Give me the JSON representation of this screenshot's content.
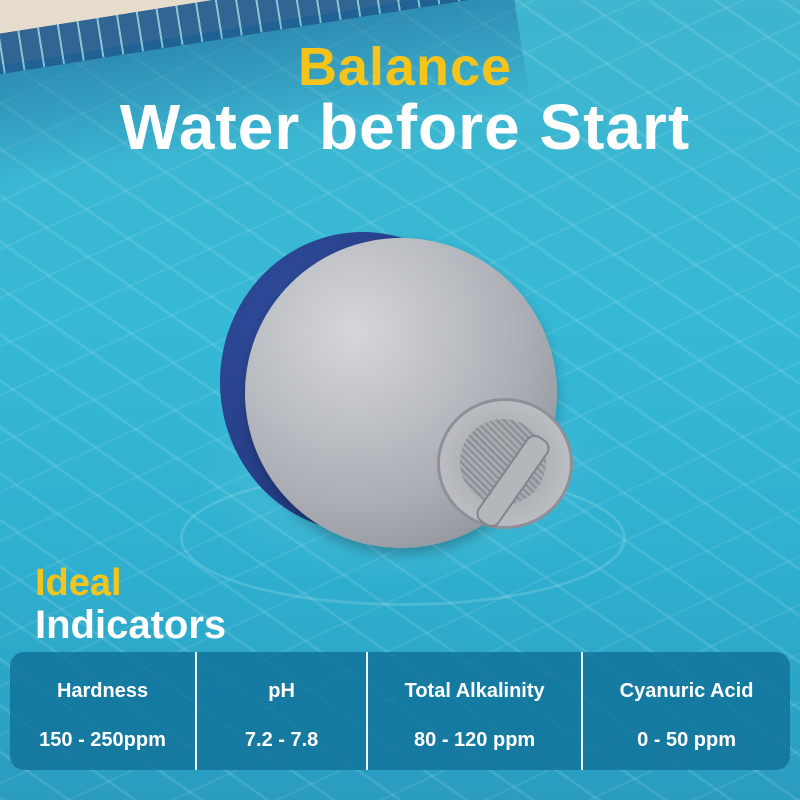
{
  "headline": {
    "line1": "Balance",
    "line2": "Water before Start"
  },
  "section": {
    "line1": "Ideal",
    "line2": "Indicators"
  },
  "indicators": [
    {
      "label": "Hardness",
      "value": "150 - 250ppm"
    },
    {
      "label": "pH",
      "value": "7.2 - 7.8"
    },
    {
      "label": "Total Alkalinity",
      "value": "80 - 120 ppm"
    },
    {
      "label": "Cyanuric Acid",
      "value": "0 - 50 ppm"
    }
  ],
  "colors": {
    "accent": "#f5c41a",
    "panel": "#0f6e96",
    "text": "#ffffff"
  }
}
